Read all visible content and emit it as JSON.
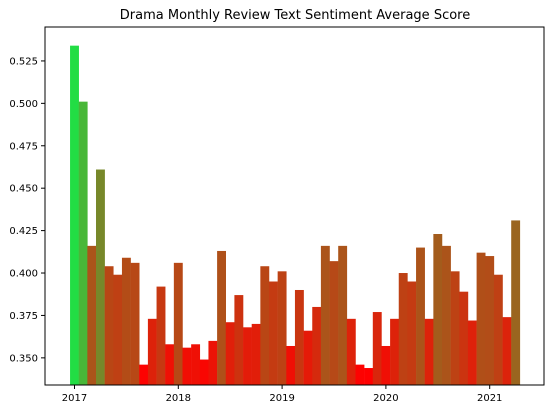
{
  "chart_data": {
    "type": "bar",
    "title": "Drama Monthly Review Text Sentiment Average Score",
    "xlabel": "",
    "ylabel": "",
    "ylim": [
      0.334,
      0.545
    ],
    "yticks": [
      "0.350",
      "0.375",
      "0.400",
      "0.425",
      "0.450",
      "0.475",
      "0.500",
      "0.525"
    ],
    "xticks": [
      "2017",
      "2018",
      "2019",
      "2020",
      "2021"
    ],
    "grid": false,
    "legend": "none",
    "color_scale": {
      "low": "#ff0000",
      "high": "#22dd44"
    },
    "x": [
      "2017-01",
      "2017-02",
      "2017-03",
      "2017-04",
      "2017-05",
      "2017-06",
      "2017-07",
      "2017-08",
      "2017-09",
      "2017-10",
      "2017-11",
      "2017-12",
      "2018-01",
      "2018-02",
      "2018-03",
      "2018-04",
      "2018-05",
      "2018-06",
      "2018-07",
      "2018-08",
      "2018-09",
      "2018-10",
      "2018-11",
      "2018-12",
      "2019-01",
      "2019-02",
      "2019-03",
      "2019-04",
      "2019-05",
      "2019-06",
      "2019-07",
      "2019-08",
      "2019-09",
      "2019-10",
      "2019-11",
      "2019-12",
      "2020-01",
      "2020-02",
      "2020-03",
      "2020-04",
      "2020-05",
      "2020-06",
      "2020-07",
      "2020-08",
      "2020-09",
      "2020-10",
      "2020-11",
      "2020-12",
      "2021-01",
      "2021-02",
      "2021-03",
      "2021-04"
    ],
    "values": [
      0.534,
      0.501,
      0.416,
      0.461,
      0.404,
      0.399,
      0.409,
      0.406,
      0.346,
      0.373,
      0.392,
      0.358,
      0.406,
      0.356,
      0.358,
      0.349,
      0.36,
      0.413,
      0.371,
      0.387,
      0.368,
      0.37,
      0.404,
      0.395,
      0.401,
      0.357,
      0.39,
      0.366,
      0.38,
      0.416,
      0.407,
      0.416,
      0.373,
      0.346,
      0.344,
      0.377,
      0.357,
      0.373,
      0.4,
      0.395,
      0.415,
      0.373,
      0.423,
      0.416,
      0.401,
      0.389,
      0.372,
      0.412,
      0.41,
      0.399,
      0.374,
      0.431
    ]
  }
}
